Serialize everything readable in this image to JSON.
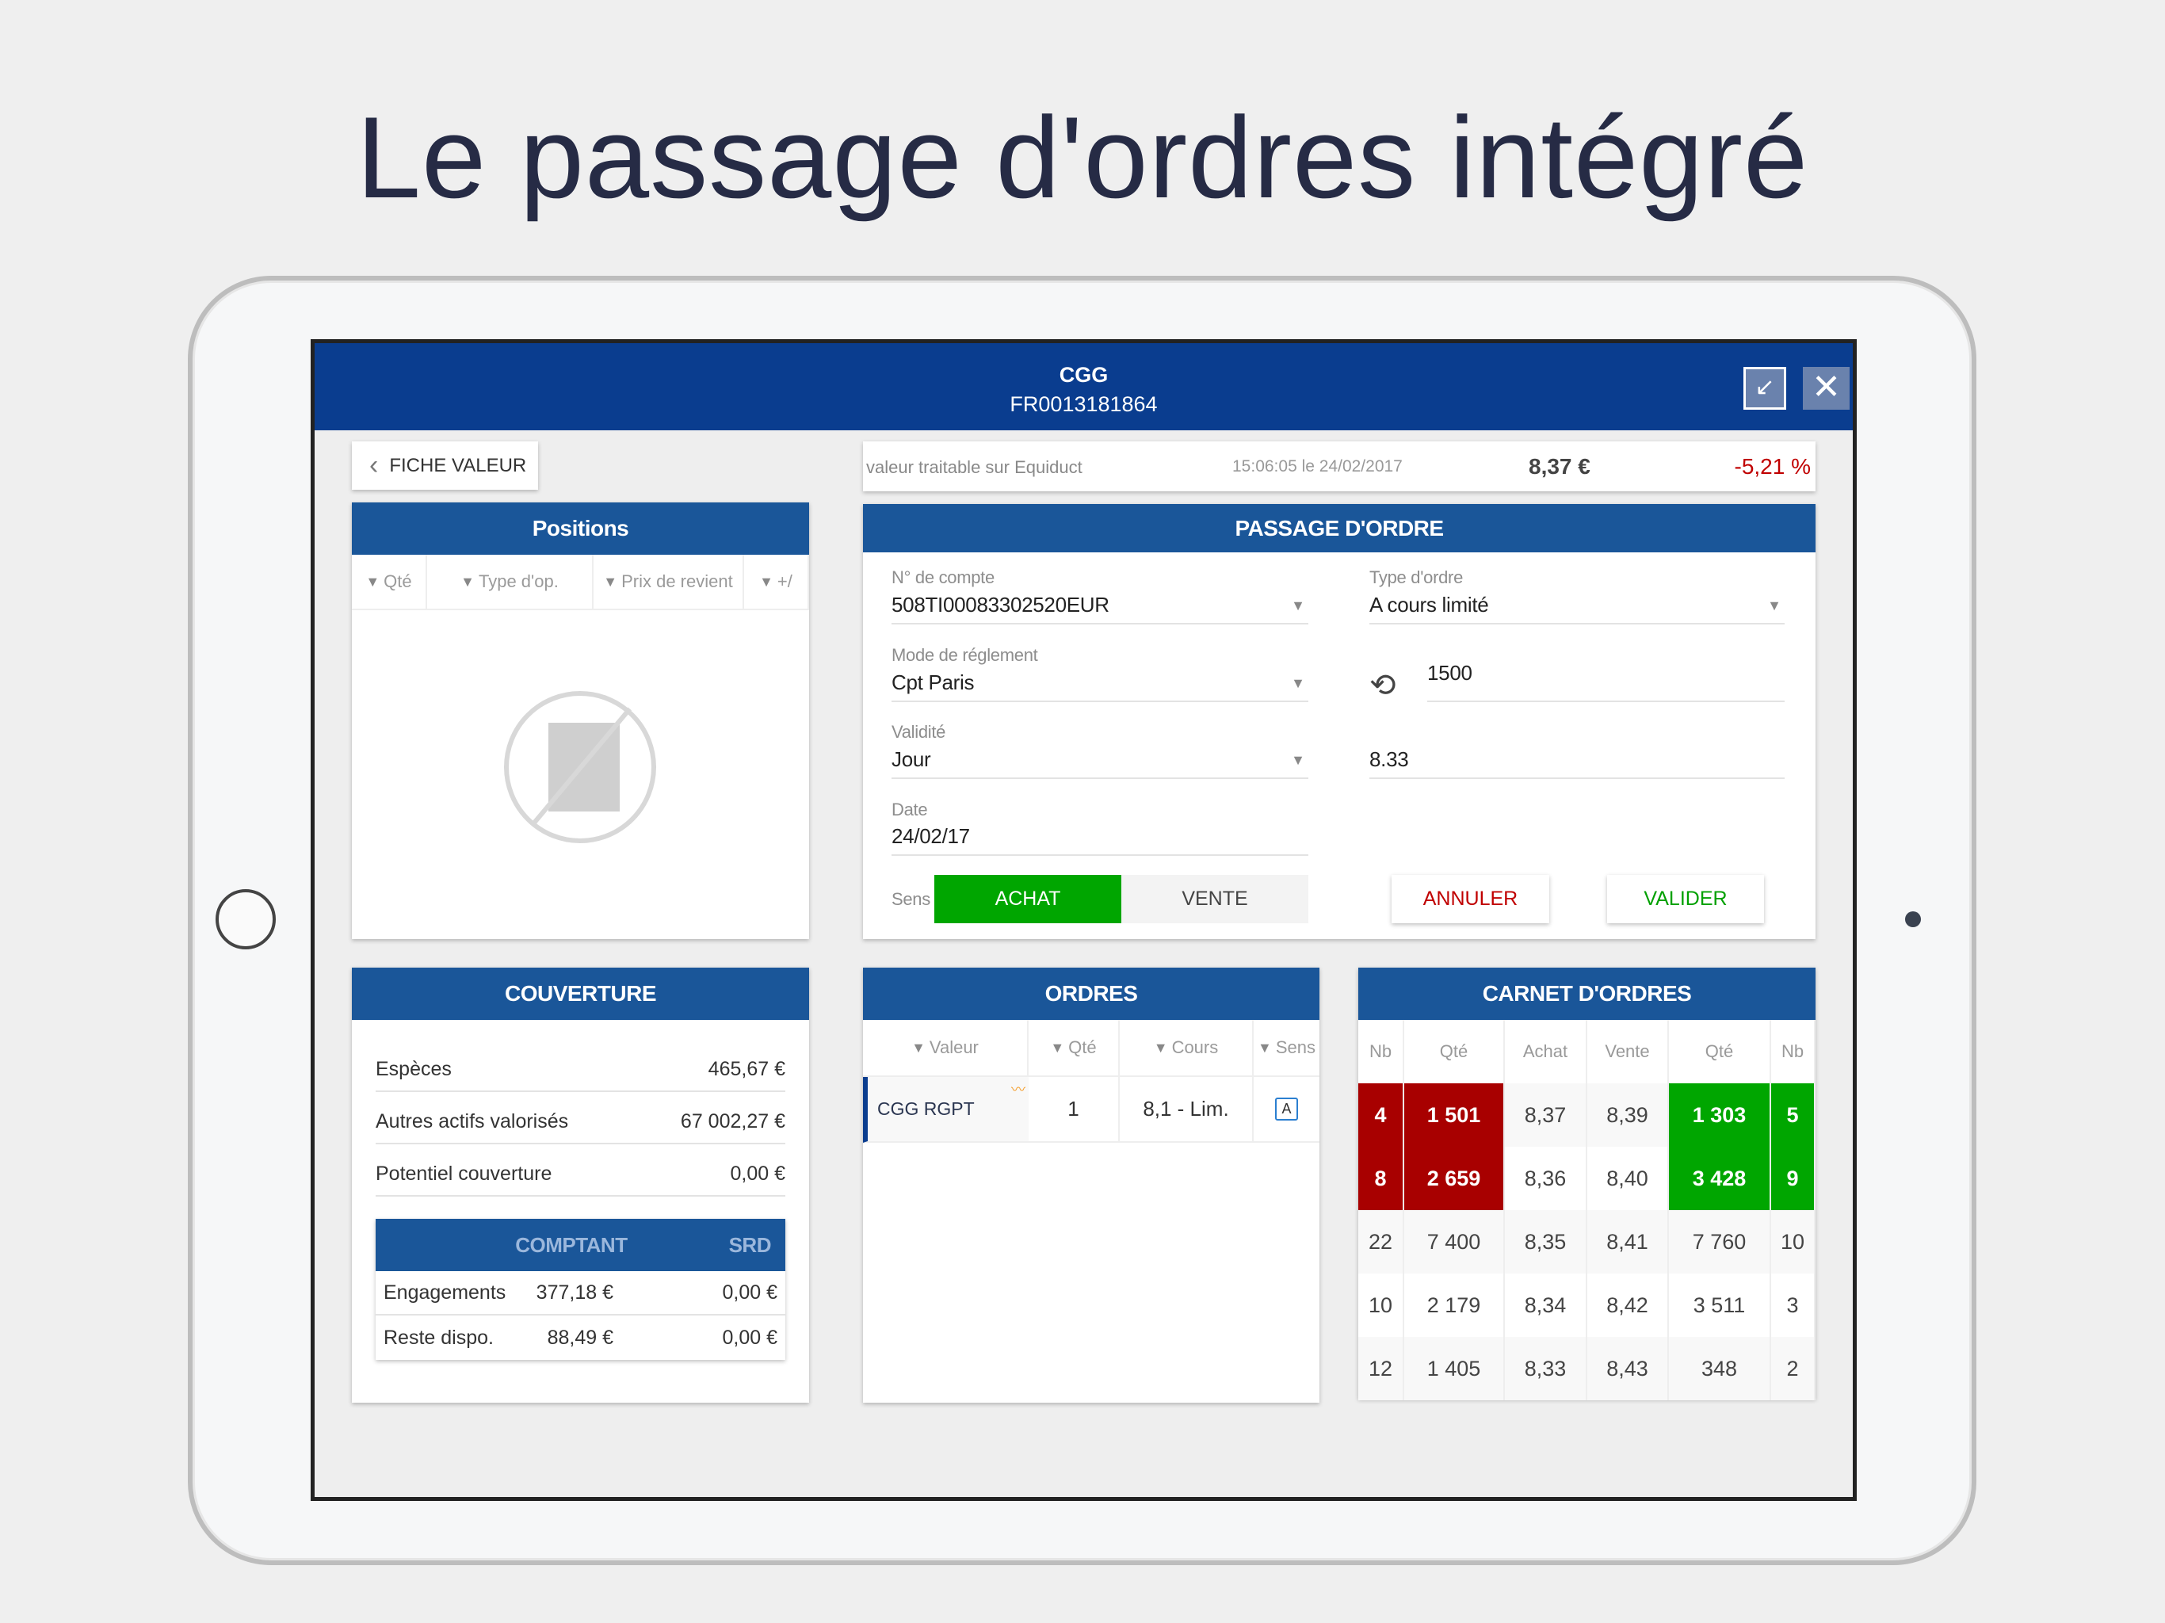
{
  "headline": "Le passage d'ordres intégré",
  "header": {
    "name": "CGG",
    "isin": "FR0013181864"
  },
  "back_label": "FICHE VALEUR",
  "info": {
    "text": "valeur traitable sur Equiduct",
    "time": "15:06:05 le 24/02/2017",
    "price": "8,37 €",
    "change": "-5,21 %"
  },
  "positions": {
    "title": "Positions",
    "columns": [
      "Qté",
      "Type d'op.",
      "Prix de revient",
      "+/"
    ]
  },
  "order": {
    "title": "PASSAGE D'ORDRE",
    "account_label": "N° de compte",
    "account": "508TI00083302520EUR",
    "type_label": "Type d'ordre",
    "type": "A cours limité",
    "settlement_label": "Mode de réglement",
    "settlement": "Cpt Paris",
    "quantity": "1500",
    "validity_label": "Validité",
    "validity": "Jour",
    "limit": "8.33",
    "date_label": "Date",
    "date": "24/02/17",
    "side_label": "Sens",
    "buy": "ACHAT",
    "sell": "VENTE",
    "cancel": "ANNULER",
    "submit": "VALIDER"
  },
  "coverage": {
    "title": "COUVERTURE",
    "rows": [
      {
        "label": "Espèces",
        "value": "465,67 €"
      },
      {
        "label": "Autres actifs valorisés",
        "value": "67 002,27 €"
      },
      {
        "label": "Potentiel couverture",
        "value": "0,00 €"
      }
    ],
    "sub_headers": [
      "COMPTANT",
      "SRD"
    ],
    "sub_rows": [
      {
        "label": "Engagements",
        "cash": "377,18 €",
        "srd": "0,00 €"
      },
      {
        "label": "Reste dispo.",
        "cash": "88,49 €",
        "srd": "0,00 €"
      }
    ]
  },
  "orders": {
    "title": "ORDRES",
    "columns": [
      "Valeur",
      "Qté",
      "Cours",
      "Sens"
    ],
    "rows": [
      {
        "valeur": "CGG RGPT",
        "qte": "1",
        "cours": "8,1 - Lim.",
        "sens": "A"
      }
    ]
  },
  "book": {
    "title": "CARNET D'ORDRES",
    "columns": [
      "Nb",
      "Qté",
      "Achat",
      "Vente",
      "Qté",
      "Nb"
    ],
    "rows": [
      [
        "4",
        "1 501",
        "8,37",
        "8,39",
        "1 303",
        "5"
      ],
      [
        "8",
        "2 659",
        "8,36",
        "8,40",
        "3 428",
        "9"
      ],
      [
        "22",
        "7 400",
        "8,35",
        "8,41",
        "7 760",
        "10"
      ],
      [
        "10",
        "2 179",
        "8,34",
        "8,42",
        "3 511",
        "3"
      ],
      [
        "12",
        "1 405",
        "8,33",
        "8,43",
        "348",
        "2"
      ]
    ]
  },
  "colors": {
    "header": "#0a3d8f",
    "panel": "#1a5699",
    "buy": "#00a600",
    "sell": "#a80000"
  }
}
